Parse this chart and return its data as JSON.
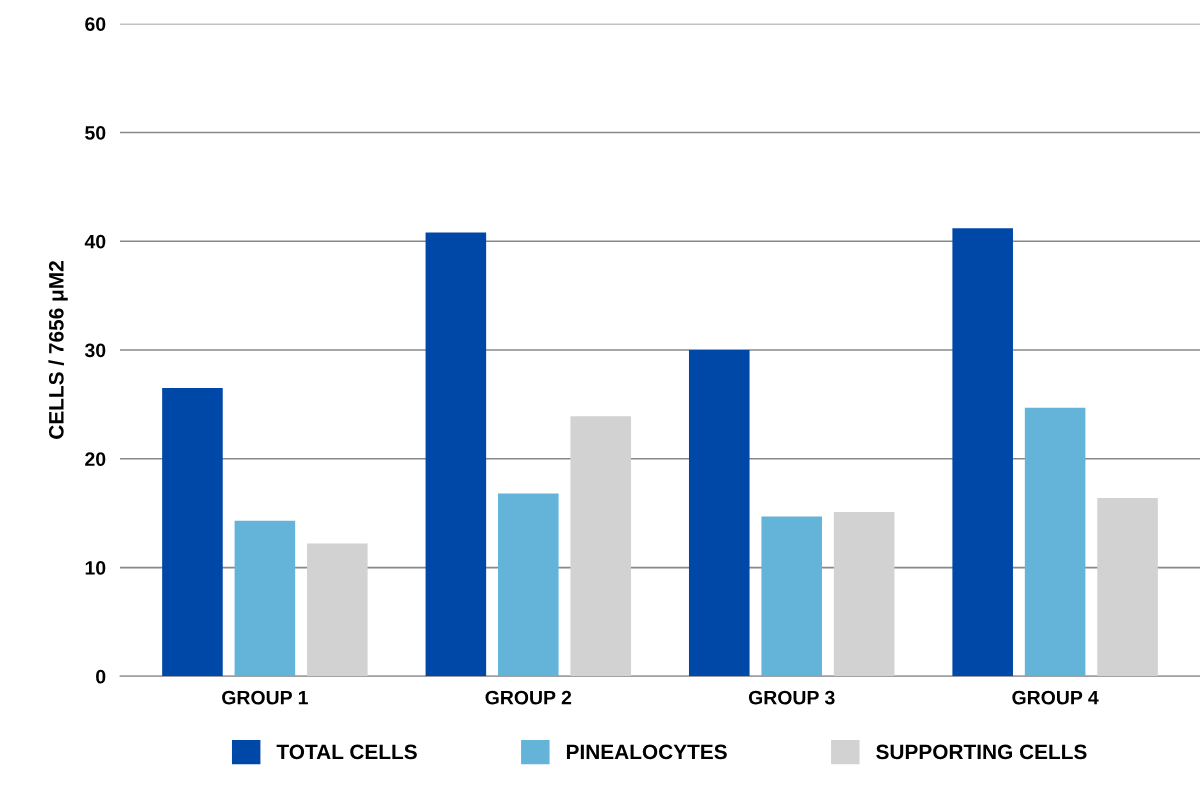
{
  "chart_data": {
    "type": "bar",
    "ylabel": "CELLS / 7656 μM2",
    "categories": [
      "GROUP 1",
      "GROUP 2",
      "GROUP 3",
      "GROUP 4"
    ],
    "series": [
      {
        "name": "TOTAL CELLS",
        "color": "#0048a8",
        "values": [
          26.5,
          40.8,
          30.0,
          41.2
        ]
      },
      {
        "name": "PINEALOCYTES",
        "color": "#64b4da",
        "values": [
          14.3,
          16.8,
          14.7,
          24.7
        ]
      },
      {
        "name": "SUPPORTING CELLS",
        "color": "#d2d2d2",
        "values": [
          12.2,
          23.9,
          15.1,
          16.4
        ]
      }
    ],
    "ylim": [
      0,
      60
    ],
    "yticks": [
      0,
      10,
      20,
      30,
      40,
      50,
      60
    ],
    "grid": "y",
    "legend": "bottom"
  }
}
